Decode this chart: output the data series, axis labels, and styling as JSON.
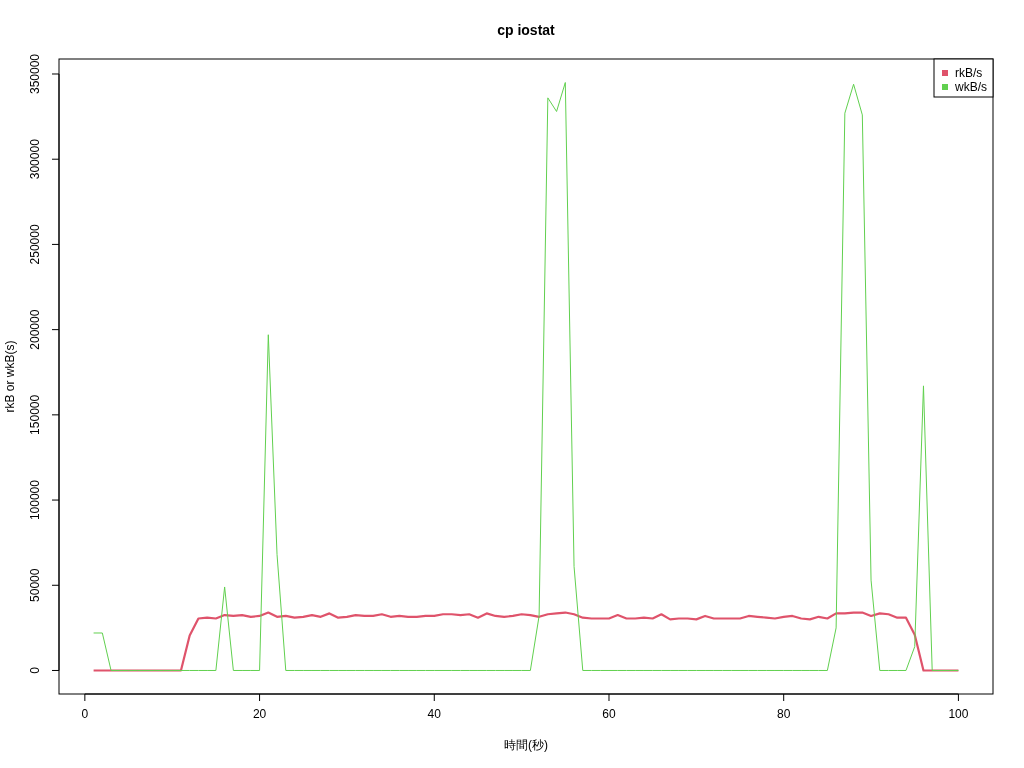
{
  "chart_data": {
    "type": "line",
    "title": "cp iostat",
    "xlabel": "時間(秒)",
    "ylabel": "rkB or wkB(s)",
    "x": [
      1,
      2,
      3,
      4,
      5,
      6,
      7,
      8,
      9,
      10,
      11,
      12,
      13,
      14,
      15,
      16,
      17,
      18,
      19,
      20,
      21,
      22,
      23,
      24,
      25,
      26,
      27,
      28,
      29,
      30,
      31,
      32,
      33,
      34,
      35,
      36,
      37,
      38,
      39,
      40,
      41,
      42,
      43,
      44,
      45,
      46,
      47,
      48,
      49,
      50,
      51,
      52,
      53,
      54,
      55,
      56,
      57,
      58,
      59,
      60,
      61,
      62,
      63,
      64,
      65,
      66,
      67,
      68,
      69,
      70,
      71,
      72,
      73,
      74,
      75,
      76,
      77,
      78,
      79,
      80,
      81,
      82,
      83,
      84,
      85,
      86,
      87,
      88,
      89,
      90,
      91,
      92,
      93,
      94,
      95,
      96,
      97,
      98,
      99,
      100
    ],
    "series": [
      {
        "name": "rkB/s",
        "color": "#df536b",
        "values": [
          0,
          0,
          0,
          0,
          0,
          0,
          0,
          0,
          0,
          0,
          0,
          20500,
          30500,
          31000,
          30500,
          32500,
          32000,
          32500,
          31500,
          32000,
          34000,
          31500,
          32000,
          31000,
          31500,
          32500,
          31500,
          33500,
          31000,
          31500,
          32500,
          32000,
          32000,
          33000,
          31500,
          32000,
          31500,
          31500,
          32000,
          32000,
          33000,
          33000,
          32500,
          33000,
          31000,
          33500,
          32000,
          31500,
          32000,
          33000,
          32500,
          31500,
          33000,
          33500,
          34000,
          33000,
          31000,
          30500,
          30500,
          30500,
          32500,
          30500,
          30500,
          31000,
          30500,
          33000,
          30000,
          30500,
          30500,
          30000,
          32000,
          30500,
          30500,
          30500,
          30500,
          32000,
          31500,
          31000,
          30500,
          31500,
          32000,
          30500,
          30000,
          31500,
          30500,
          33500,
          33500,
          34000,
          34000,
          32000,
          33500,
          33000,
          31000,
          31000,
          21000,
          0,
          0,
          0,
          0,
          0
        ]
      },
      {
        "name": "wkB/s",
        "color": "#61d04f",
        "values": [
          22000,
          22000,
          0,
          0,
          0,
          0,
          0,
          0,
          0,
          0,
          0,
          0,
          0,
          0,
          0,
          49000,
          0,
          0,
          0,
          0,
          197000,
          68000,
          0,
          0,
          0,
          0,
          0,
          0,
          0,
          0,
          0,
          0,
          0,
          0,
          0,
          0,
          0,
          0,
          0,
          0,
          0,
          0,
          0,
          0,
          0,
          0,
          0,
          0,
          0,
          0,
          0,
          32000,
          336000,
          328000,
          345000,
          61000,
          0,
          0,
          0,
          0,
          0,
          0,
          0,
          0,
          0,
          0,
          0,
          0,
          0,
          0,
          0,
          0,
          0,
          0,
          0,
          0,
          0,
          0,
          0,
          0,
          0,
          0,
          0,
          0,
          0,
          25000,
          327000,
          344000,
          326000,
          53000,
          0,
          0,
          0,
          0,
          14000,
          167000,
          0,
          0,
          0,
          0
        ]
      }
    ],
    "xlim": [
      -2.96,
      103.96
    ],
    "ylim": [
      -13800,
      358800
    ],
    "xticks": [
      0,
      20,
      40,
      60,
      80,
      100
    ],
    "yticks": [
      0,
      50000,
      100000,
      150000,
      200000,
      250000,
      300000,
      350000
    ],
    "legend": "top right",
    "grid": false
  }
}
